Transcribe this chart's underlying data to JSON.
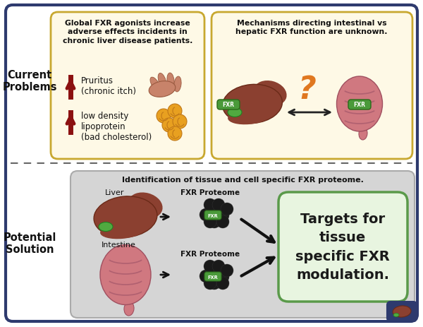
{
  "bg_color": "#ffffff",
  "outer_border_color": "#2e3a6e",
  "left_box_bg": "#fef9e6",
  "left_box_border": "#c8a830",
  "right_box_bg": "#fef9e6",
  "right_box_border": "#c8a830",
  "bottom_box_bg": "#d5d5d5",
  "bottom_box_border": "#aaaaaa",
  "target_box_bg": "#e8f5e0",
  "target_box_border": "#5a9a4a",
  "section_label_color": "#111111",
  "current_problems_label": "Current\nProblems",
  "potential_solution_label": "Potential\nSolution",
  "left_box_title": "Global FXR agonists increase\nadverse effects incidents in\nchronic liver disease patients.",
  "pruritus_text": "Pruritus\n(chronic itch)",
  "ldl_text": "low density\nlipoprotein\n(bad cholesterol)",
  "arrow_up_color": "#8b1010",
  "right_box_title": "Mechanisms directing intestinal vs\nhepatic FXR function are unknown.",
  "bottom_box_title": "Identification of tissue and cell specific FXR proteome.",
  "liver_label": "Liver",
  "intestine_label": "Intestine",
  "fxr_proteome_label": "FXR Proteome",
  "fxr_label": "FXR",
  "target_box_text": "Targets for\ntissue\nspecific FXR\nmodulation.",
  "target_box_text_color": "#1a1a1a",
  "divider_color": "#666666",
  "question_mark_color": "#e07820",
  "corner_icon_bg": "#2e3a6e",
  "liver_color": "#8b4030",
  "liver_dark": "#6a2a18",
  "intestine_color": "#d07880",
  "intestine_dark": "#a05060",
  "green_tag_bg": "#4a9a3a",
  "green_tag_border": "#2a6a1a",
  "blob_color": "#1a1a1a",
  "hand_color": "#c8836a"
}
